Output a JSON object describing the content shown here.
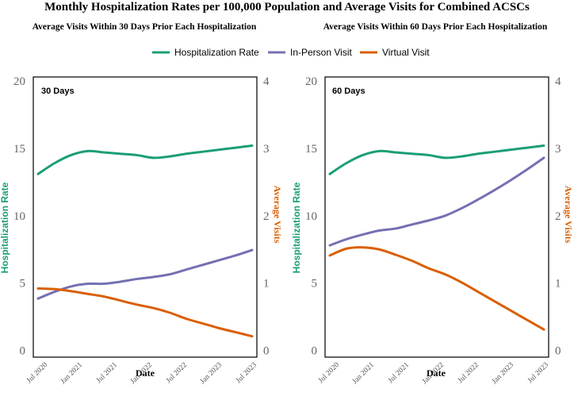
{
  "figure": {
    "title": "Monthly Hospitalization Rates per 100,000 Population and Average Visits for Combined ACSCs",
    "colors": {
      "hosp": "#1b9e77",
      "inperson": "#7570b3",
      "virtual": "#d95f02"
    },
    "legend": {
      "items": [
        {
          "key": "hosp",
          "label": "Hospitalization Rate"
        },
        {
          "key": "inperson",
          "label": "In-Person Visit"
        },
        {
          "key": "virtual",
          "label": "Virtual Visit"
        }
      ]
    }
  },
  "chart_data": [
    {
      "type": "line",
      "subtitle": "Average Visits Within 30 Days Prior Each Hospitalization",
      "panel_label": "30 Days",
      "xlabel": "Date",
      "ylabel_left": "Hospitalization Rate",
      "ylabel_right": "Average Visits",
      "x_ticks": [
        "Jul 2020",
        "Jan 2021",
        "Jul 2021",
        "Jan 2022",
        "Jul 2022",
        "Jan 2023",
        "Jul 2023"
      ],
      "y_left_ticks": [
        "0",
        "5",
        "10",
        "15",
        "20"
      ],
      "y_right_ticks": [
        "0",
        "1",
        "2",
        "3",
        "4"
      ],
      "ylim_left": [
        -0.5,
        20.3
      ],
      "ylim_right": [
        -0.1,
        4.06
      ],
      "x": [
        0,
        3,
        6,
        9,
        12,
        15,
        18,
        21,
        24,
        27,
        30,
        33,
        36,
        39
      ],
      "series": [
        {
          "key": "hosp",
          "name": "Hospitalization Rate",
          "axis": "left",
          "values": [
            13.1,
            13.9,
            14.5,
            14.8,
            14.7,
            14.6,
            14.5,
            14.3,
            14.4,
            14.6,
            14.75,
            14.9,
            15.05,
            15.2
          ]
        },
        {
          "key": "inperson",
          "name": "In-Person Visit",
          "axis": "right",
          "values": [
            0.77,
            0.87,
            0.95,
            0.99,
            0.99,
            1.02,
            1.06,
            1.09,
            1.13,
            1.2,
            1.27,
            1.34,
            1.41,
            1.49
          ]
        },
        {
          "key": "virtual",
          "name": "Virtual Visit",
          "axis": "right",
          "values": [
            0.92,
            0.91,
            0.88,
            0.84,
            0.8,
            0.74,
            0.68,
            0.63,
            0.56,
            0.47,
            0.4,
            0.33,
            0.27,
            0.21
          ]
        }
      ]
    },
    {
      "type": "line",
      "subtitle": "Average Visits Within 60 Days Prior Each Hospitalization",
      "panel_label": "60 Days",
      "xlabel": "Date",
      "ylabel_left": "Hospitalization Rate",
      "ylabel_right": "Average Visits",
      "x_ticks": [
        "Jul 2020",
        "Jan 2021",
        "Jul 2021",
        "Jan 2022",
        "Jul 2022",
        "Jan 2023",
        "Jul 2023"
      ],
      "y_left_ticks": [
        "0",
        "5",
        "10",
        "15",
        "20"
      ],
      "y_right_ticks": [
        "0",
        "1",
        "2",
        "3",
        "4"
      ],
      "ylim_left": [
        -0.5,
        20.3
      ],
      "ylim_right": [
        -0.1,
        4.06
      ],
      "x": [
        0,
        3,
        6,
        9,
        12,
        15,
        18,
        21,
        24,
        27,
        30,
        33,
        36,
        39
      ],
      "series": [
        {
          "key": "hosp",
          "name": "Hospitalization Rate",
          "axis": "left",
          "values": [
            13.1,
            13.9,
            14.5,
            14.8,
            14.7,
            14.6,
            14.5,
            14.3,
            14.4,
            14.6,
            14.75,
            14.9,
            15.05,
            15.2
          ]
        },
        {
          "key": "inperson",
          "name": "In-Person Visit",
          "axis": "right",
          "values": [
            1.56,
            1.65,
            1.72,
            1.78,
            1.81,
            1.87,
            1.93,
            2.0,
            2.11,
            2.24,
            2.38,
            2.53,
            2.69,
            2.86
          ]
        },
        {
          "key": "virtual",
          "name": "Virtual Visit",
          "axis": "right",
          "values": [
            1.41,
            1.51,
            1.53,
            1.5,
            1.42,
            1.33,
            1.22,
            1.13,
            1.01,
            0.87,
            0.73,
            0.59,
            0.45,
            0.31
          ]
        }
      ]
    }
  ]
}
